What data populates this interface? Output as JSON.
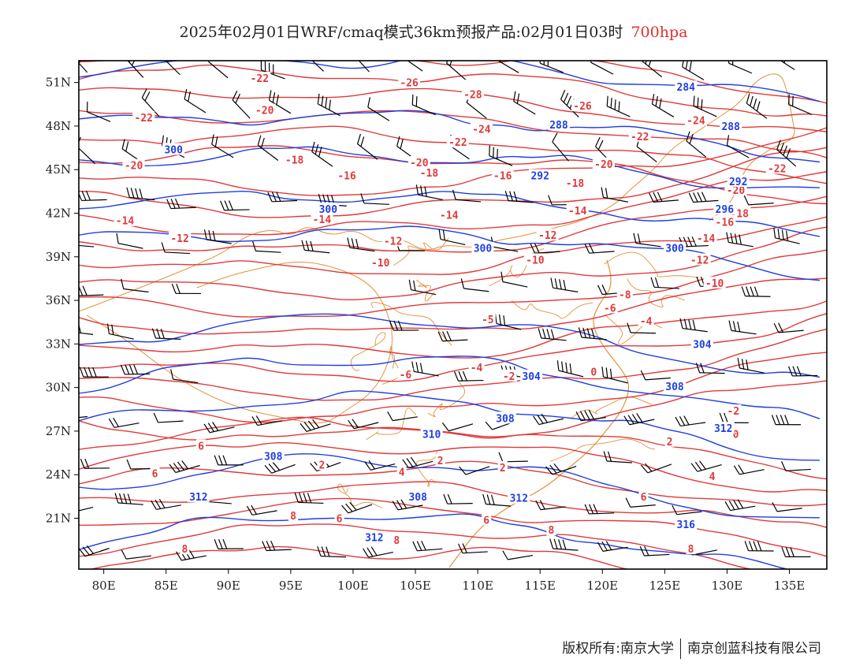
{
  "title": {
    "text": "2025年02月01日WRF/cmaq模式36km预报产品:02月01日03时",
    "level": "700hpa"
  },
  "footer": {
    "left": "版权所有:南京大学",
    "right": "南京创蓝科技有限公司"
  },
  "colors": {
    "temperature": "#e03a3a",
    "geopotential": "#1f3fe0",
    "boundary": "#e3913a",
    "wind": "#000000"
  },
  "map": {
    "lon_range": [
      78,
      138
    ],
    "lat_range": [
      17.5,
      52.5
    ],
    "x_ticks": [
      "80E",
      "85E",
      "90E",
      "95E",
      "100E",
      "105E",
      "110E",
      "115E",
      "120E",
      "125E",
      "130E",
      "135E"
    ],
    "y_ticks": [
      "51N",
      "48N",
      "45N",
      "42N",
      "39N",
      "36N",
      "33N",
      "30N",
      "27N",
      "24N",
      "21N"
    ]
  },
  "temp_labels": [
    {
      "t": "-22",
      "lon": 92.5,
      "lat": 51.3
    },
    {
      "t": "-26",
      "lon": 104.5,
      "lat": 51.0
    },
    {
      "t": "-28",
      "lon": 109.6,
      "lat": 50.2
    },
    {
      "t": "-26",
      "lon": 118.4,
      "lat": 49.4
    },
    {
      "t": "-22",
      "lon": 83.2,
      "lat": 48.6
    },
    {
      "t": "-20",
      "lon": 92.9,
      "lat": 49.1
    },
    {
      "t": "-24",
      "lon": 110.3,
      "lat": 47.8
    },
    {
      "t": "-22",
      "lon": 108.4,
      "lat": 46.9
    },
    {
      "t": "-22",
      "lon": 123.0,
      "lat": 47.3
    },
    {
      "t": "-24",
      "lon": 127.5,
      "lat": 48.4
    },
    {
      "t": "-20",
      "lon": 82.4,
      "lat": 45.3
    },
    {
      "t": "-18",
      "lon": 95.3,
      "lat": 45.7
    },
    {
      "t": "-20",
      "lon": 105.3,
      "lat": 45.5
    },
    {
      "t": "-16",
      "lon": 99.5,
      "lat": 44.6
    },
    {
      "t": "-18",
      "lon": 106.1,
      "lat": 44.8
    },
    {
      "t": "-16",
      "lon": 112.0,
      "lat": 44.6
    },
    {
      "t": "-18",
      "lon": 117.8,
      "lat": 44.1
    },
    {
      "t": "-20",
      "lon": 120.1,
      "lat": 45.4
    },
    {
      "t": "-22",
      "lon": 134.0,
      "lat": 45.1
    },
    {
      "t": "-20",
      "lon": 130.7,
      "lat": 43.6
    },
    {
      "t": "-18",
      "lon": 131.0,
      "lat": 42.0
    },
    {
      "t": "-14",
      "lon": 81.7,
      "lat": 41.5
    },
    {
      "t": "-14",
      "lon": 97.5,
      "lat": 41.6
    },
    {
      "t": "-14",
      "lon": 107.7,
      "lat": 41.9
    },
    {
      "t": "-14",
      "lon": 118.0,
      "lat": 42.2
    },
    {
      "t": "-16",
      "lon": 129.8,
      "lat": 41.4
    },
    {
      "t": "-14",
      "lon": 128.3,
      "lat": 40.3
    },
    {
      "t": "-12",
      "lon": 86.1,
      "lat": 40.3
    },
    {
      "t": "-12",
      "lon": 103.2,
      "lat": 40.1
    },
    {
      "t": "-12",
      "lon": 115.6,
      "lat": 40.5
    },
    {
      "t": "-12",
      "lon": 127.8,
      "lat": 38.8
    },
    {
      "t": "-10",
      "lon": 102.2,
      "lat": 38.6
    },
    {
      "t": "-10",
      "lon": 114.6,
      "lat": 38.8
    },
    {
      "t": "-10",
      "lon": 129.0,
      "lat": 37.2
    },
    {
      "t": "-8",
      "lon": 121.8,
      "lat": 36.4
    },
    {
      "t": "-6",
      "lon": 120.6,
      "lat": 35.5
    },
    {
      "t": "-4",
      "lon": 123.5,
      "lat": 34.6
    },
    {
      "t": "-5",
      "lon": 110.8,
      "lat": 34.7
    },
    {
      "t": "-4",
      "lon": 109.9,
      "lat": 31.4
    },
    {
      "t": "-2",
      "lon": 112.5,
      "lat": 30.8
    },
    {
      "t": "0",
      "lon": 119.3,
      "lat": 31.1
    },
    {
      "t": "-6",
      "lon": 104.2,
      "lat": 30.9
    },
    {
      "t": "-2",
      "lon": 130.5,
      "lat": 28.4
    },
    {
      "t": "0",
      "lon": 130.7,
      "lat": 26.8
    },
    {
      "t": "2",
      "lon": 125.4,
      "lat": 26.3
    },
    {
      "t": "6",
      "lon": 87.8,
      "lat": 26.0
    },
    {
      "t": "6",
      "lon": 84.1,
      "lat": 24.1
    },
    {
      "t": "2",
      "lon": 97.5,
      "lat": 24.7
    },
    {
      "t": "4",
      "lon": 103.9,
      "lat": 24.2
    },
    {
      "t": "2",
      "lon": 107.0,
      "lat": 25.0
    },
    {
      "t": "2",
      "lon": 112.0,
      "lat": 24.5
    },
    {
      "t": "4",
      "lon": 128.8,
      "lat": 23.9
    },
    {
      "t": "6",
      "lon": 123.3,
      "lat": 22.5
    },
    {
      "t": "8",
      "lon": 95.2,
      "lat": 21.2
    },
    {
      "t": "6",
      "lon": 98.9,
      "lat": 21.0
    },
    {
      "t": "6",
      "lon": 110.7,
      "lat": 20.9
    },
    {
      "t": "8",
      "lon": 115.9,
      "lat": 20.2
    },
    {
      "t": "8",
      "lon": 103.5,
      "lat": 19.5
    },
    {
      "t": "8",
      "lon": 86.5,
      "lat": 18.9
    },
    {
      "t": "8",
      "lon": 127.1,
      "lat": 18.9
    }
  ],
  "height_labels": [
    {
      "t": "284",
      "lon": 126.7,
      "lat": 50.7
    },
    {
      "t": "288",
      "lon": 116.5,
      "lat": 48.1
    },
    {
      "t": "288",
      "lon": 130.3,
      "lat": 48.0
    },
    {
      "t": "300",
      "lon": 85.6,
      "lat": 46.4
    },
    {
      "t": "292",
      "lon": 115.0,
      "lat": 44.6
    },
    {
      "t": "292",
      "lon": 130.9,
      "lat": 44.2
    },
    {
      "t": "300",
      "lon": 98.0,
      "lat": 42.3
    },
    {
      "t": "296",
      "lon": 129.8,
      "lat": 42.3
    },
    {
      "t": "300",
      "lon": 110.4,
      "lat": 39.6
    },
    {
      "t": "300",
      "lon": 125.8,
      "lat": 39.6
    },
    {
      "t": "304",
      "lon": 114.3,
      "lat": 30.8
    },
    {
      "t": "304",
      "lon": 128.0,
      "lat": 33.0
    },
    {
      "t": "308",
      "lon": 125.8,
      "lat": 30.1
    },
    {
      "t": "310",
      "lon": 106.3,
      "lat": 26.8
    },
    {
      "t": "308",
      "lon": 112.2,
      "lat": 27.9
    },
    {
      "t": "312",
      "lon": 129.7,
      "lat": 27.2
    },
    {
      "t": "308",
      "lon": 93.6,
      "lat": 25.3
    },
    {
      "t": "312",
      "lon": 87.6,
      "lat": 22.5
    },
    {
      "t": "308",
      "lon": 105.2,
      "lat": 22.5
    },
    {
      "t": "312",
      "lon": 113.3,
      "lat": 22.4
    },
    {
      "t": "316",
      "lon": 126.7,
      "lat": 20.6
    },
    {
      "t": "312",
      "lon": 101.7,
      "lat": 19.7
    }
  ]
}
